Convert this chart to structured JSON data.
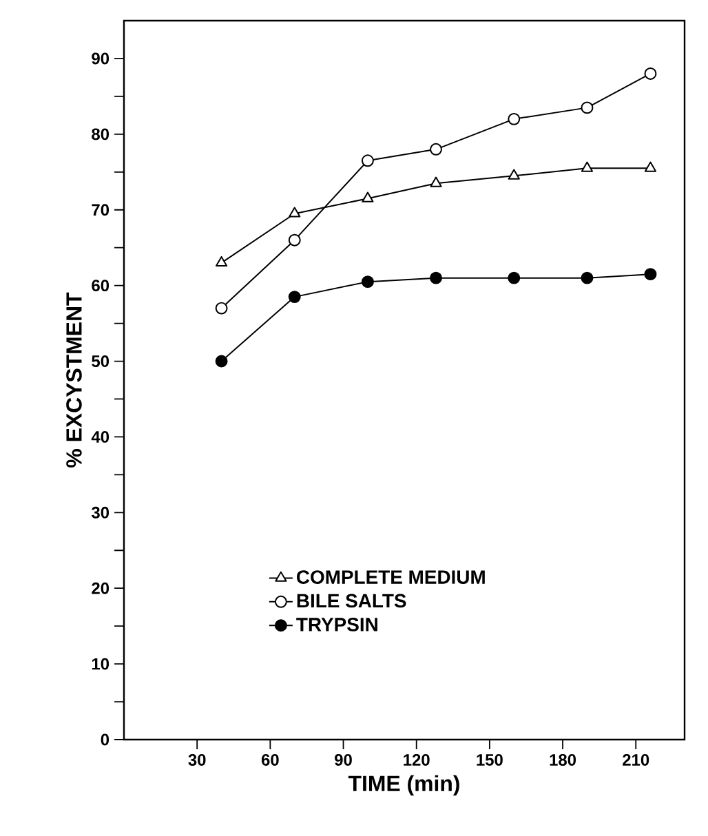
{
  "chart_data": {
    "type": "line",
    "xlabel": "TIME (min)",
    "ylabel": "% EXCYSTMENT",
    "x": [
      40,
      70,
      100,
      128,
      160,
      190,
      216
    ],
    "series": [
      {
        "name": "COMPLETE MEDIUM",
        "color": "#000000",
        "marker": "triangle",
        "values": [
          63,
          69.5,
          71.5,
          73.5,
          74.5,
          75.5,
          75.5
        ]
      },
      {
        "name": "BILE SALTS",
        "color": "#000000",
        "marker": "circle",
        "values": [
          57,
          66,
          76.5,
          78,
          82,
          83.5,
          88
        ]
      },
      {
        "name": "TRYPSIN",
        "color": "#000000",
        "marker": "filled circle",
        "values": [
          50,
          58.5,
          60.5,
          61,
          61,
          61,
          61.5
        ]
      }
    ],
    "xlim": [
      0,
      230
    ],
    "ylim": [
      0,
      95
    ],
    "xticks": [
      30,
      60,
      90,
      120,
      150,
      180,
      210
    ],
    "yticks": [
      0,
      {
        "value": 5,
        "label": null
      },
      10,
      {
        "value": 15,
        "label": null
      },
      20,
      {
        "value": 25,
        "label": null
      },
      30,
      {
        "value": 35,
        "label": null
      },
      40,
      {
        "value": 45,
        "label": null
      },
      50,
      {
        "value": 55,
        "label": null
      },
      60,
      {
        "value": 65,
        "label": null
      },
      70,
      {
        "value": 75,
        "label": null
      },
      80,
      {
        "value": 85,
        "label": null
      },
      90
    ],
    "grid": false,
    "legend": "bottom left",
    "line_style": "solid"
  }
}
